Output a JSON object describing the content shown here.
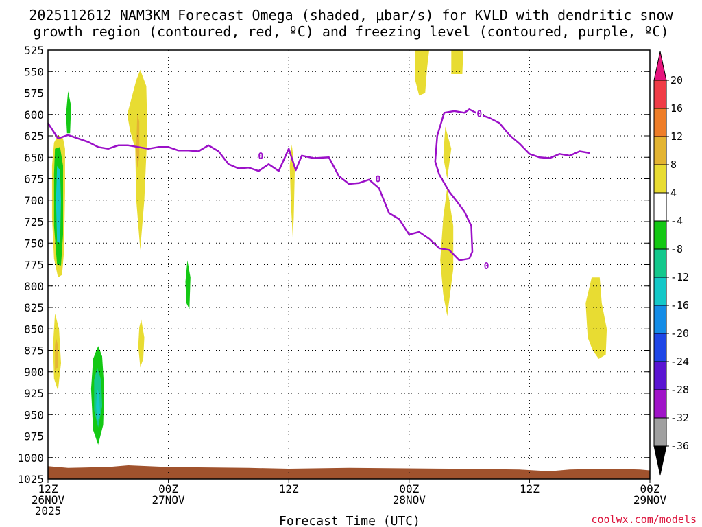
{
  "chart_data": {
    "type": "heatmap",
    "title_line1": "2025112612 NAM3KM Forecast Omega (shaded, μbar/s) for KVLD with dendritic snow",
    "title_line2": "growth region (contoured, red, ºC) and freezing level (contoured, purple, ºC)",
    "xlabel": "Forecast Time (UTC)",
    "credit": "coolwx.com/models",
    "x_range_hours": [
      0,
      60
    ],
    "y_range_hpa": [
      525,
      1025
    ],
    "y_ticks": [
      525,
      550,
      575,
      600,
      625,
      650,
      675,
      700,
      725,
      750,
      775,
      800,
      825,
      850,
      875,
      900,
      925,
      950,
      975,
      1000,
      1025
    ],
    "x_ticks": [
      {
        "hour": 0,
        "lines": [
          "12Z",
          "26NOV",
          "2025"
        ]
      },
      {
        "hour": 12,
        "lines": [
          "00Z",
          "27NOV"
        ]
      },
      {
        "hour": 24,
        "lines": [
          "12Z"
        ]
      },
      {
        "hour": 36,
        "lines": [
          "00Z",
          "28NOV"
        ]
      },
      {
        "hour": 48,
        "lines": [
          "12Z"
        ]
      },
      {
        "hour": 60,
        "lines": [
          "00Z",
          "29NOV"
        ]
      }
    ],
    "colorbar": {
      "labels": [
        "20",
        "16",
        "12",
        "8",
        "4",
        "-4",
        "-8",
        "-12",
        "-16",
        "-20",
        "-24",
        "-28",
        "-32",
        "-36"
      ],
      "bins": [
        {
          "from": 16,
          "to": 20,
          "color": "#f03c46"
        },
        {
          "from": 12,
          "to": 16,
          "color": "#ee7d28"
        },
        {
          "from": 8,
          "to": 12,
          "color": "#e3b432"
        },
        {
          "from": 4,
          "to": 8,
          "color": "#e8dc32"
        },
        {
          "from": -4,
          "to": 4,
          "color": "#ffffff"
        },
        {
          "from": -8,
          "to": -4,
          "color": "#14c814"
        },
        {
          "from": -12,
          "to": -8,
          "color": "#14c88c"
        },
        {
          "from": -16,
          "to": -12,
          "color": "#14c8c8"
        },
        {
          "from": -20,
          "to": -16,
          "color": "#148ce6"
        },
        {
          "from": -24,
          "to": -20,
          "color": "#1e46e6"
        },
        {
          "from": -28,
          "to": -24,
          "color": "#5a14d2"
        },
        {
          "from": -32,
          "to": -28,
          "color": "#a014c8"
        },
        {
          "from": -36,
          "to": -32,
          "color": "#a0a0a0"
        }
      ],
      "top_arrow_color": "#e6147d",
      "bottom_arrow_color": "#000000"
    },
    "freezing_level_label": "0",
    "freezing_level": [
      [
        0,
        610
      ],
      [
        1,
        628
      ],
      [
        2,
        624
      ],
      [
        3,
        628
      ],
      [
        4,
        632
      ],
      [
        5,
        638
      ],
      [
        6,
        640
      ],
      [
        7,
        636
      ],
      [
        8,
        636
      ],
      [
        9,
        638
      ],
      [
        10,
        640
      ],
      [
        11,
        638
      ],
      [
        12,
        638
      ],
      [
        13,
        642
      ],
      [
        14,
        642
      ],
      [
        15,
        643
      ],
      [
        16,
        636
      ],
      [
        17,
        643
      ],
      [
        18,
        658
      ],
      [
        19,
        663
      ],
      [
        20,
        662
      ],
      [
        21,
        666
      ],
      [
        22,
        658
      ],
      [
        23,
        666
      ],
      [
        24,
        640
      ],
      [
        24.7,
        665
      ],
      [
        25.3,
        648
      ],
      [
        26.5,
        651
      ],
      [
        28,
        650
      ],
      [
        29,
        672
      ],
      [
        30,
        681
      ],
      [
        31,
        680
      ],
      [
        32,
        676
      ],
      [
        33,
        686
      ],
      [
        34,
        715
      ],
      [
        35,
        722
      ],
      [
        36,
        740
      ],
      [
        37,
        737
      ],
      [
        38,
        745
      ],
      [
        39,
        756
      ],
      [
        40,
        758
      ],
      [
        41,
        770
      ],
      [
        42,
        768
      ],
      [
        42.3,
        760
      ],
      [
        42.2,
        730
      ],
      [
        41.5,
        713
      ],
      [
        40.8,
        702
      ],
      [
        40,
        690
      ],
      [
        39,
        670
      ],
      [
        38.6,
        655
      ],
      [
        38.8,
        625
      ],
      [
        39.5,
        598
      ],
      [
        40.5,
        596
      ],
      [
        41.5,
        598
      ],
      [
        42,
        594
      ],
      [
        43,
        600
      ],
      [
        44,
        604
      ],
      [
        45,
        610
      ],
      [
        46,
        624
      ],
      [
        47,
        634
      ],
      [
        48,
        646
      ],
      [
        49,
        650
      ],
      [
        50,
        651
      ],
      [
        51,
        646
      ],
      [
        52,
        648
      ],
      [
        53,
        643
      ],
      [
        54,
        645
      ]
    ],
    "freezing_level_label_points": [
      [
        21.2,
        648
      ],
      [
        32.9,
        675
      ],
      [
        43,
        599
      ],
      [
        43.7,
        776
      ]
    ],
    "omega_regions": [
      {
        "value": 6,
        "poly": [
          [
            0.6,
            633
          ],
          [
            1.0,
            624
          ],
          [
            1.5,
            628
          ],
          [
            1.7,
            640
          ],
          [
            1.7,
            690
          ],
          [
            1.6,
            760
          ],
          [
            1.4,
            787
          ],
          [
            1.0,
            790
          ],
          [
            0.6,
            768
          ],
          [
            0.4,
            720
          ],
          [
            0.4,
            660
          ]
        ]
      },
      {
        "value": -6,
        "poly": [
          [
            0.7,
            640
          ],
          [
            1.2,
            638
          ],
          [
            1.5,
            660
          ],
          [
            1.5,
            740
          ],
          [
            1.3,
            776
          ],
          [
            0.9,
            775
          ],
          [
            0.6,
            730
          ],
          [
            0.6,
            670
          ]
        ]
      },
      {
        "value": -14,
        "poly": [
          [
            0.9,
            660
          ],
          [
            1.2,
            665
          ],
          [
            1.3,
            700
          ],
          [
            1.2,
            750
          ],
          [
            0.9,
            748
          ],
          [
            0.8,
            700
          ]
        ]
      },
      {
        "value": -6,
        "poly": [
          [
            2.0,
            573
          ],
          [
            2.3,
            590
          ],
          [
            2.2,
            622
          ],
          [
            1.9,
            622
          ],
          [
            1.8,
            600
          ]
        ]
      },
      {
        "value": 6,
        "poly": [
          [
            9.2,
            548
          ],
          [
            9.8,
            567
          ],
          [
            9.9,
            620
          ],
          [
            9.6,
            700
          ],
          [
            9.2,
            758
          ],
          [
            8.8,
            700
          ],
          [
            8.7,
            640
          ],
          [
            8.2,
            620
          ],
          [
            7.9,
            600
          ],
          [
            8.3,
            582
          ],
          [
            8.8,
            560
          ]
        ]
      },
      {
        "value": 10,
        "poly": [
          [
            8.9,
            600
          ],
          [
            9.1,
            608
          ],
          [
            9.1,
            650
          ],
          [
            8.9,
            663
          ],
          [
            8.8,
            640
          ]
        ]
      },
      {
        "value": 6,
        "poly": [
          [
            0.7,
            832
          ],
          [
            1.1,
            850
          ],
          [
            1.3,
            890
          ],
          [
            1.0,
            922
          ],
          [
            0.6,
            908
          ],
          [
            0.5,
            870
          ]
        ]
      },
      {
        "value": 10,
        "poly": [
          [
            0.8,
            860
          ],
          [
            1.0,
            870
          ],
          [
            1.0,
            895
          ],
          [
            0.7,
            898
          ],
          [
            0.7,
            870
          ]
        ]
      },
      {
        "value": -6,
        "poly": [
          [
            5.0,
            870
          ],
          [
            5.4,
            882
          ],
          [
            5.6,
            920
          ],
          [
            5.5,
            962
          ],
          [
            5.0,
            985
          ],
          [
            4.5,
            968
          ],
          [
            4.3,
            920
          ],
          [
            4.5,
            885
          ]
        ]
      },
      {
        "value": -10,
        "poly": [
          [
            4.9,
            895
          ],
          [
            5.3,
            910
          ],
          [
            5.4,
            940
          ],
          [
            5.0,
            965
          ],
          [
            4.6,
            945
          ],
          [
            4.6,
            910
          ]
        ]
      },
      {
        "value": -14,
        "poly": [
          [
            4.9,
            920
          ],
          [
            5.1,
            925
          ],
          [
            5.2,
            950
          ],
          [
            4.9,
            958
          ],
          [
            4.8,
            940
          ]
        ]
      },
      {
        "value": 6,
        "poly": [
          [
            9.3,
            839
          ],
          [
            9.6,
            860
          ],
          [
            9.5,
            885
          ],
          [
            9.2,
            895
          ],
          [
            9.0,
            870
          ],
          [
            9.1,
            848
          ]
        ]
      },
      {
        "value": -6,
        "poly": [
          [
            13.9,
            770
          ],
          [
            14.2,
            790
          ],
          [
            14.1,
            827
          ],
          [
            13.8,
            820
          ],
          [
            13.7,
            795
          ]
        ]
      },
      {
        "value": 6,
        "poly": [
          [
            24.3,
            635
          ],
          [
            24.6,
            665
          ],
          [
            24.5,
            720
          ],
          [
            24.4,
            745
          ],
          [
            24.2,
            700
          ],
          [
            24.1,
            660
          ]
        ]
      },
      {
        "value": 6,
        "poly": [
          [
            36.6,
            525
          ],
          [
            38.0,
            525
          ],
          [
            37.8,
            545
          ],
          [
            37.6,
            575
          ],
          [
            37.0,
            578
          ],
          [
            36.6,
            560
          ]
        ]
      },
      {
        "value": 6,
        "poly": [
          [
            40.2,
            525
          ],
          [
            41.4,
            525
          ],
          [
            41.3,
            553
          ],
          [
            40.2,
            553
          ]
        ]
      },
      {
        "value": 6,
        "poly": [
          [
            39.6,
            614
          ],
          [
            40.2,
            640
          ],
          [
            39.8,
            675
          ],
          [
            39.4,
            650
          ]
        ]
      },
      {
        "value": 6,
        "poly": [
          [
            39.8,
            685
          ],
          [
            40.4,
            730
          ],
          [
            40.4,
            780
          ],
          [
            39.8,
            835
          ],
          [
            39.4,
            810
          ],
          [
            39.1,
            770
          ],
          [
            39.4,
            720
          ]
        ]
      },
      {
        "value": 6,
        "poly": [
          [
            54.2,
            790
          ],
          [
            55.0,
            790
          ],
          [
            55.2,
            820
          ],
          [
            55.7,
            850
          ],
          [
            55.6,
            880
          ],
          [
            54.9,
            885
          ],
          [
            54.3,
            875
          ],
          [
            53.8,
            860
          ],
          [
            53.6,
            820
          ]
        ]
      }
    ],
    "terrain": {
      "color": "#a0522d",
      "bottom_hpa": 1025,
      "surface": [
        [
          0,
          1010
        ],
        [
          2,
          1012
        ],
        [
          6,
          1011
        ],
        [
          8,
          1009
        ],
        [
          12,
          1011
        ],
        [
          20,
          1012
        ],
        [
          24,
          1013
        ],
        [
          30,
          1012
        ],
        [
          40,
          1013
        ],
        [
          47,
          1014
        ],
        [
          50,
          1016
        ],
        [
          52,
          1014
        ],
        [
          56,
          1013
        ],
        [
          59,
          1014
        ],
        [
          60,
          1015
        ]
      ]
    }
  }
}
